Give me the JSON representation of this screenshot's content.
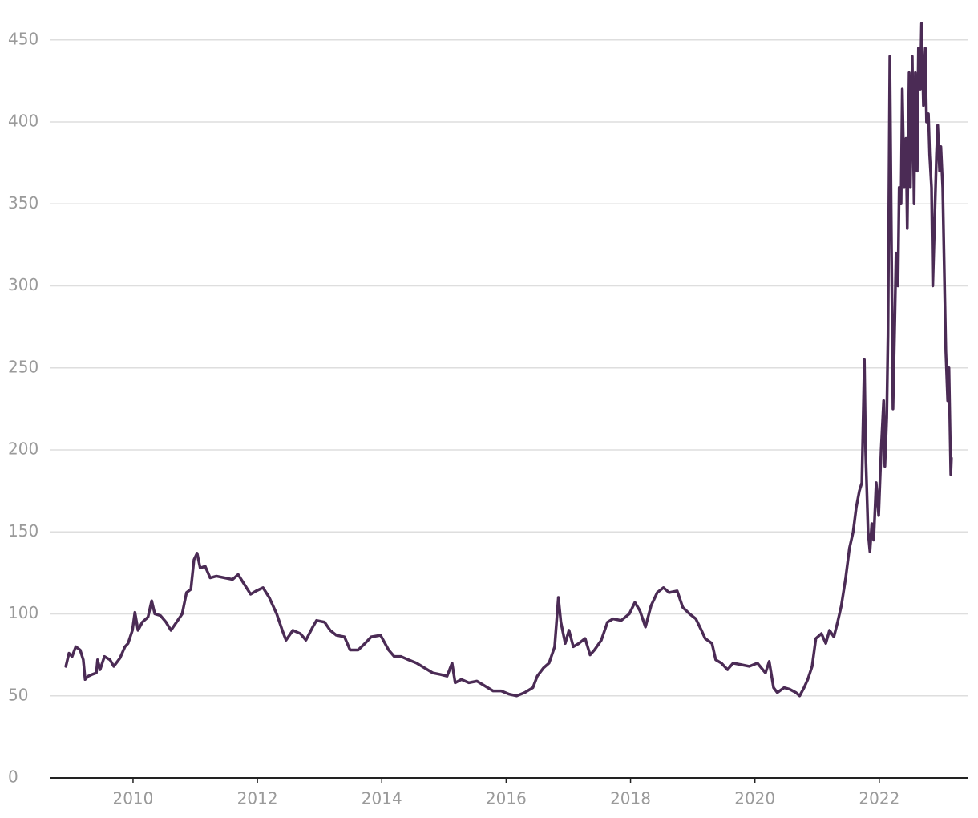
{
  "chart_data": {
    "type": "line",
    "x": [
      2008.92,
      2008.97,
      2009.02,
      2009.08,
      2009.15,
      2009.2,
      2009.23,
      2009.28,
      2009.34,
      2009.41,
      2009.43,
      2009.47,
      2009.54,
      2009.63,
      2009.69,
      2009.79,
      2009.87,
      2009.92,
      2009.99,
      2010.03,
      2010.08,
      2010.15,
      2010.24,
      2010.3,
      2010.35,
      2010.44,
      2010.53,
      2010.61,
      2010.7,
      2010.79,
      2010.86,
      2010.93,
      2010.98,
      2011.03,
      2011.08,
      2011.16,
      2011.24,
      2011.34,
      2011.47,
      2011.6,
      2011.69,
      2011.79,
      2011.89,
      2011.98,
      2012.09,
      2012.19,
      2012.31,
      2012.4,
      2012.46,
      2012.57,
      2012.69,
      2012.78,
      2012.89,
      2012.95,
      2013.08,
      2013.17,
      2013.27,
      2013.4,
      2013.49,
      2013.62,
      2013.73,
      2013.83,
      2013.98,
      2014.11,
      2014.2,
      2014.31,
      2014.43,
      2014.56,
      2014.69,
      2014.82,
      2014.95,
      2015.05,
      2015.13,
      2015.18,
      2015.28,
      2015.4,
      2015.53,
      2015.66,
      2015.79,
      2015.92,
      2016.05,
      2016.17,
      2016.3,
      2016.43,
      2016.5,
      2016.6,
      2016.69,
      2016.78,
      2016.84,
      2016.88,
      2016.95,
      2017.01,
      2017.08,
      2017.17,
      2017.27,
      2017.35,
      2017.42,
      2017.53,
      2017.63,
      2017.72,
      2017.85,
      2017.98,
      2018.07,
      2018.15,
      2018.24,
      2018.33,
      2018.43,
      2018.53,
      2018.62,
      2018.75,
      2018.84,
      2018.95,
      2019.05,
      2019.14,
      2019.2,
      2019.31,
      2019.37,
      2019.46,
      2019.56,
      2019.65,
      2019.78,
      2019.91,
      2020.04,
      2020.17,
      2020.23,
      2020.3,
      2020.36,
      2020.47,
      2020.56,
      2020.66,
      2020.72,
      2020.79,
      2020.85,
      2020.92,
      2020.98,
      2021.07,
      2021.14,
      2021.2,
      2021.27,
      2021.33,
      2021.39,
      2021.46,
      2021.52,
      2021.58,
      2021.63,
      2021.68,
      2021.72,
      2021.76,
      2021.78,
      2021.82,
      2021.85,
      2021.88,
      2021.91,
      2021.95,
      2021.99,
      2022.03,
      2022.07,
      2022.09,
      2022.12,
      2022.14,
      2022.17,
      2022.19,
      2022.22,
      2022.25,
      2022.27,
      2022.3,
      2022.32,
      2022.35,
      2022.37,
      2022.4,
      2022.43,
      2022.45,
      2022.48,
      2022.5,
      2022.53,
      2022.56,
      2022.58,
      2022.61,
      2022.63,
      2022.66,
      2022.68,
      2022.71,
      2022.74,
      2022.76,
      2022.79,
      2022.81,
      2022.84,
      2022.86,
      2022.89,
      2022.92,
      2022.94,
      2022.97,
      2022.99,
      2023.02,
      2023.04,
      2023.07,
      2023.1,
      2023.12,
      2023.15,
      2023.16
    ],
    "values": [
      68,
      76,
      74,
      80,
      78,
      72,
      60,
      62,
      63,
      64,
      72,
      66,
      74,
      72,
      68,
      73,
      80,
      82,
      90,
      101,
      90,
      95,
      98,
      108,
      100,
      99,
      95,
      90,
      95,
      100,
      113,
      115,
      133,
      137,
      128,
      129,
      122,
      123,
      122,
      121,
      124,
      118,
      112,
      114,
      116,
      110,
      100,
      90,
      84,
      90,
      88,
      84,
      92,
      96,
      95,
      90,
      87,
      86,
      78,
      78,
      82,
      86,
      87,
      78,
      74,
      74,
      72,
      70,
      67,
      64,
      63,
      62,
      70,
      58,
      60,
      58,
      59,
      56,
      53,
      53,
      51,
      50,
      52,
      55,
      62,
      67,
      70,
      80,
      110,
      95,
      82,
      90,
      80,
      82,
      85,
      75,
      78,
      84,
      95,
      97,
      96,
      100,
      107,
      102,
      92,
      105,
      113,
      116,
      113,
      114,
      104,
      100,
      97,
      90,
      85,
      82,
      72,
      70,
      66,
      70,
      69,
      68,
      70,
      64,
      71,
      55,
      52,
      55,
      54,
      52,
      50,
      55,
      60,
      68,
      85,
      88,
      82,
      90,
      86,
      95,
      105,
      122,
      140,
      150,
      165,
      175,
      180,
      255,
      200,
      150,
      138,
      155,
      145,
      180,
      160,
      200,
      230,
      190,
      220,
      270,
      440,
      350,
      225,
      280,
      320,
      300,
      360,
      350,
      420,
      360,
      390,
      335,
      430,
      360,
      440,
      350,
      430,
      370,
      445,
      420,
      460,
      410,
      445,
      400,
      405,
      380,
      360,
      300,
      340,
      380,
      398,
      370,
      385,
      360,
      320,
      260,
      230,
      250,
      185,
      195
    ],
    "color": "#4b2b55",
    "xlim": [
      2008.66,
      2023.42
    ],
    "ylim": [
      0,
      467
    ],
    "xticks": [
      2010,
      2012,
      2014,
      2016,
      2018,
      2020,
      2022
    ],
    "yticks": [
      0,
      50,
      100,
      150,
      200,
      250,
      300,
      350,
      400,
      450
    ],
    "grid": true
  }
}
